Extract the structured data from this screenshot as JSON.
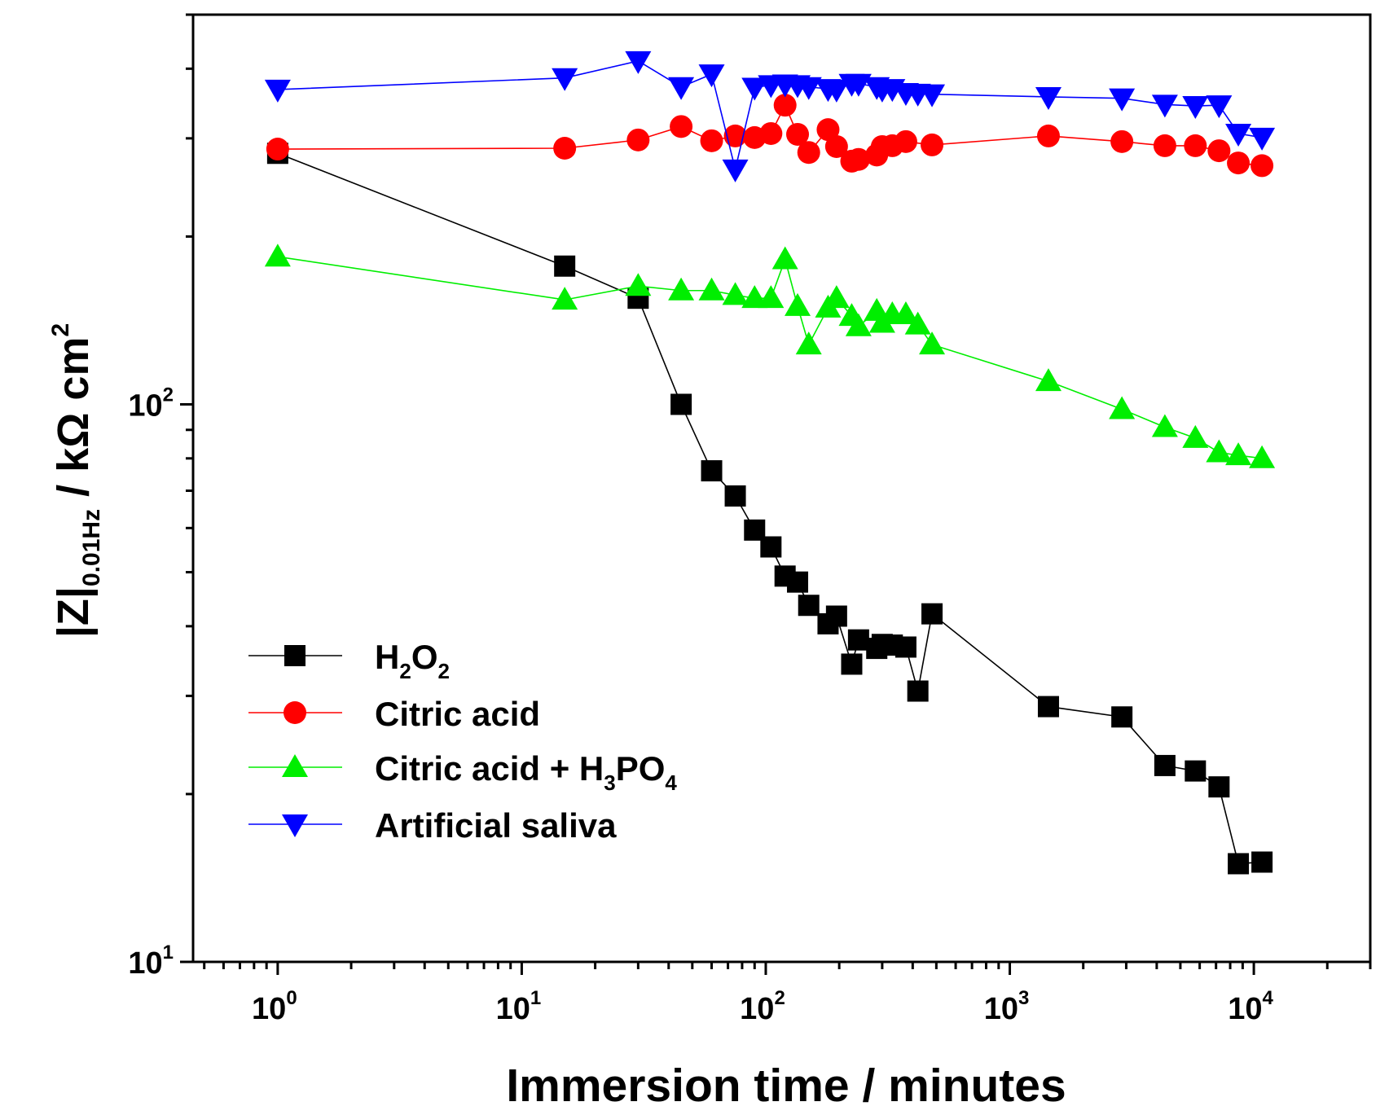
{
  "chart_data": {
    "type": "scatter",
    "title": "",
    "xlabel": "Immersion time / minutes",
    "ylabel": {
      "main": "|Z|",
      "sub": "0.01Hz",
      "unit": " / kΩ cm",
      "sup": "2"
    },
    "xscale": "log",
    "yscale": "log",
    "xlim": [
      0.45,
      30000
    ],
    "ylim": [
      10,
      500
    ],
    "x_ticks": [
      {
        "base": "10",
        "exp": "0",
        "value": 1
      },
      {
        "base": "10",
        "exp": "1",
        "value": 10
      },
      {
        "base": "10",
        "exp": "2",
        "value": 100
      },
      {
        "base": "10",
        "exp": "3",
        "value": 1000
      },
      {
        "base": "10",
        "exp": "4",
        "value": 10000
      }
    ],
    "y_ticks": [
      {
        "base": "10",
        "exp": "1",
        "value": 10
      },
      {
        "base": "10",
        "exp": "2",
        "value": 100
      }
    ],
    "grid": false,
    "legend_position": "bottom-left",
    "series": [
      {
        "name": "H2O2",
        "label": {
          "parts": [
            [
              "H",
              ""
            ],
            [
              "2",
              "sub"
            ],
            [
              "O",
              ""
            ],
            [
              "2",
              "sub"
            ]
          ]
        },
        "color": "#000000",
        "marker": "square",
        "points": [
          [
            1,
            282
          ],
          [
            15,
            177
          ],
          [
            30,
            155
          ],
          [
            45,
            100
          ],
          [
            60,
            76
          ],
          [
            75,
            68.5
          ],
          [
            90,
            59.5
          ],
          [
            105,
            55.5
          ],
          [
            120,
            49.2
          ],
          [
            135,
            48
          ],
          [
            150,
            43.6
          ],
          [
            180,
            40.4
          ],
          [
            195,
            41.7
          ],
          [
            225,
            34.2
          ],
          [
            240,
            37.8
          ],
          [
            285,
            36.5
          ],
          [
            300,
            37.1
          ],
          [
            330,
            37
          ],
          [
            375,
            36.7
          ],
          [
            420,
            30.6
          ],
          [
            480,
            42.1
          ],
          [
            1440,
            28.7
          ],
          [
            2880,
            27.5
          ],
          [
            4320,
            22.5
          ],
          [
            5760,
            22
          ],
          [
            7200,
            20.6
          ],
          [
            8640,
            15
          ],
          [
            10800,
            15.1
          ]
        ]
      },
      {
        "name": "Citric acid",
        "label": {
          "parts": [
            [
              "Citric acid",
              ""
            ]
          ]
        },
        "color": "#ff0000",
        "marker": "circle",
        "points": [
          [
            1,
            287
          ],
          [
            15,
            288
          ],
          [
            30,
            298
          ],
          [
            45,
            315
          ],
          [
            60,
            297
          ],
          [
            75,
            303
          ],
          [
            90,
            301
          ],
          [
            105,
            306
          ],
          [
            120,
            344
          ],
          [
            135,
            305
          ],
          [
            150,
            283
          ],
          [
            180,
            311
          ],
          [
            195,
            290
          ],
          [
            225,
            273
          ],
          [
            240,
            275
          ],
          [
            285,
            280
          ],
          [
            300,
            290
          ],
          [
            330,
            291
          ],
          [
            375,
            296
          ],
          [
            480,
            292
          ],
          [
            1440,
            303
          ],
          [
            2880,
            296
          ],
          [
            4320,
            291
          ],
          [
            5760,
            291
          ],
          [
            7200,
            285
          ],
          [
            8640,
            271
          ],
          [
            10800,
            268
          ]
        ]
      },
      {
        "name": "Citric acid + H3PO4",
        "label": {
          "parts": [
            [
              "Citric acid + H",
              ""
            ],
            [
              "3",
              "sub"
            ],
            [
              "PO",
              ""
            ],
            [
              "4",
              "sub"
            ]
          ]
        },
        "color": "#00ee00",
        "marker": "triangle-up",
        "points": [
          [
            1,
            184
          ],
          [
            15,
            154
          ],
          [
            30,
            163
          ],
          [
            45,
            160
          ],
          [
            60,
            160
          ],
          [
            75,
            157
          ],
          [
            90,
            155
          ],
          [
            105,
            155
          ],
          [
            120,
            182
          ],
          [
            135,
            150
          ],
          [
            150,
            128
          ],
          [
            180,
            149
          ],
          [
            195,
            155
          ],
          [
            225,
            144
          ],
          [
            240,
            138
          ],
          [
            285,
            147
          ],
          [
            300,
            140
          ],
          [
            330,
            145
          ],
          [
            375,
            145
          ],
          [
            420,
            139
          ],
          [
            480,
            128
          ],
          [
            1440,
            110
          ],
          [
            2880,
            98
          ],
          [
            4320,
            91
          ],
          [
            5760,
            87
          ],
          [
            7200,
            82
          ],
          [
            8640,
            81
          ],
          [
            10800,
            80
          ]
        ]
      },
      {
        "name": "Artificial saliva",
        "label": {
          "parts": [
            [
              "Artificial saliva",
              ""
            ]
          ]
        },
        "color": "#0000ff",
        "marker": "triangle-down",
        "points": [
          [
            1,
            367
          ],
          [
            15,
            385
          ],
          [
            30,
            413
          ],
          [
            45,
            371
          ],
          [
            60,
            391
          ],
          [
            75,
            264
          ],
          [
            90,
            370
          ],
          [
            105,
            374
          ],
          [
            120,
            375
          ],
          [
            135,
            374
          ],
          [
            150,
            371
          ],
          [
            180,
            368
          ],
          [
            195,
            367
          ],
          [
            225,
            376
          ],
          [
            240,
            376
          ],
          [
            285,
            371
          ],
          [
            300,
            367
          ],
          [
            330,
            368
          ],
          [
            375,
            362
          ],
          [
            420,
            361
          ],
          [
            480,
            360
          ],
          [
            1440,
            356
          ],
          [
            2880,
            354
          ],
          [
            4320,
            345
          ],
          [
            5760,
            343
          ],
          [
            7200,
            344
          ],
          [
            8640,
            306
          ],
          [
            10800,
            301
          ]
        ]
      }
    ]
  }
}
